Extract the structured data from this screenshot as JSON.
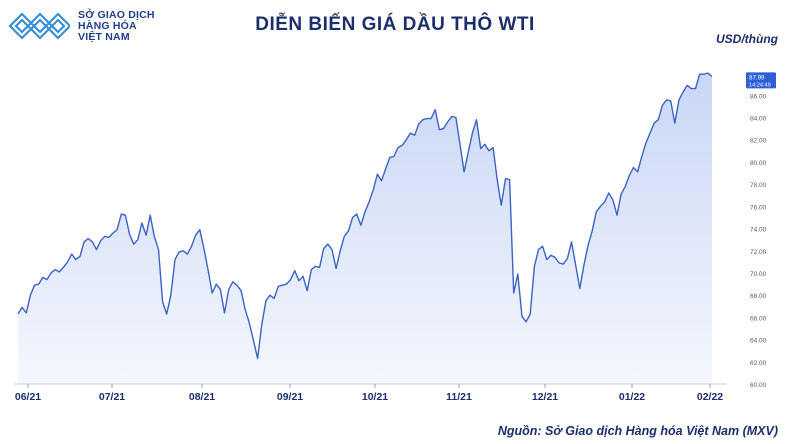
{
  "header": {
    "logo_lines": [
      "SỞ GIAO DỊCH",
      "HÀNG HÓA",
      "VIỆT NAM"
    ],
    "title": "DIỄN BIẾN GIÁ DẦU THÔ WTI",
    "unit": "USD/thùng"
  },
  "footer": {
    "source": "Nguồn: Sở Giao dịch Hàng hóa Việt Nam (MXV)"
  },
  "colors": {
    "line": "#3b63c4",
    "area_top": "#c9d6f5",
    "area_bottom": "#f4f7fd",
    "badge": "#2f5fd6",
    "title": "#1c2e6b"
  },
  "chart_data": {
    "type": "area",
    "title": "DIỄN BIẾN GIÁ DẦU THÔ WTI",
    "ylabel": "USD/thùng",
    "ylim": [
      60,
      89
    ],
    "y_ticks": [
      60,
      62,
      64,
      66,
      68,
      70,
      72,
      74,
      76,
      78,
      80,
      82,
      84,
      86
    ],
    "y_tick_labels": [
      "60.00",
      "62.00",
      "64.00",
      "66.00",
      "68.00",
      "70.00",
      "72.00",
      "74.00",
      "76.00",
      "78.00",
      "80.00",
      "82.00",
      "84.00",
      "86.00"
    ],
    "x_tick_labels": [
      "06/21",
      "07/21",
      "08/21",
      "09/21",
      "10/21",
      "11/21",
      "12/21",
      "01/22",
      "02/22"
    ],
    "last_value_label": "87.99",
    "last_time_label": "14:24:49",
    "series": [
      {
        "values": [
          66.3,
          66.9,
          66.4,
          68.0,
          68.9,
          69.0,
          69.6,
          69.4,
          70.0,
          70.3,
          70.1,
          70.5,
          71.0,
          71.7,
          71.2,
          71.5,
          72.8,
          73.1,
          72.8,
          72.1,
          72.9,
          73.3,
          73.2,
          73.6,
          73.9,
          75.3,
          75.2,
          73.5,
          72.6,
          73.0,
          74.5,
          73.4,
          75.2,
          73.3,
          72.1,
          67.4,
          66.3,
          68.0,
          71.2,
          71.9,
          72.0,
          71.7,
          72.4,
          73.4,
          73.9,
          72.2,
          70.3,
          68.2,
          69.0,
          68.5,
          66.4,
          68.5,
          69.2,
          68.9,
          68.4,
          66.7,
          65.5,
          63.9,
          62.3,
          65.3,
          67.5,
          68.0,
          67.7,
          68.8,
          68.9,
          69.0,
          69.4,
          70.2,
          69.3,
          69.7,
          68.4,
          70.3,
          70.6,
          70.5,
          72.2,
          72.6,
          72.1,
          70.4,
          72.0,
          73.3,
          73.8,
          75.0,
          75.3,
          74.3,
          75.5,
          76.4,
          77.5,
          78.9,
          78.3,
          79.4,
          80.4,
          80.5,
          81.3,
          81.5,
          82.0,
          82.6,
          82.4,
          83.4,
          83.8,
          83.9,
          83.9,
          84.7,
          82.9,
          83.0,
          83.6,
          84.1,
          84.0,
          81.6,
          79.1,
          80.9,
          82.6,
          83.8,
          81.2,
          81.6,
          81.0,
          81.3,
          78.4,
          76.1,
          78.5,
          78.4,
          68.2,
          69.9,
          66.1,
          65.6,
          66.3,
          70.6,
          72.1,
          72.4,
          71.2,
          71.6,
          71.4,
          70.9,
          70.8,
          71.3,
          72.8,
          70.7,
          68.6,
          70.7,
          72.5,
          73.8,
          75.5,
          76.0,
          76.4,
          77.2,
          76.6,
          75.2,
          77.1,
          77.8,
          78.8,
          79.5,
          79.1,
          80.5,
          81.7,
          82.6,
          83.5,
          83.8,
          85.1,
          85.6,
          85.5,
          83.5,
          85.6,
          86.3,
          86.9,
          86.6,
          86.6,
          87.9,
          87.9,
          88.0,
          87.7
        ]
      }
    ]
  }
}
